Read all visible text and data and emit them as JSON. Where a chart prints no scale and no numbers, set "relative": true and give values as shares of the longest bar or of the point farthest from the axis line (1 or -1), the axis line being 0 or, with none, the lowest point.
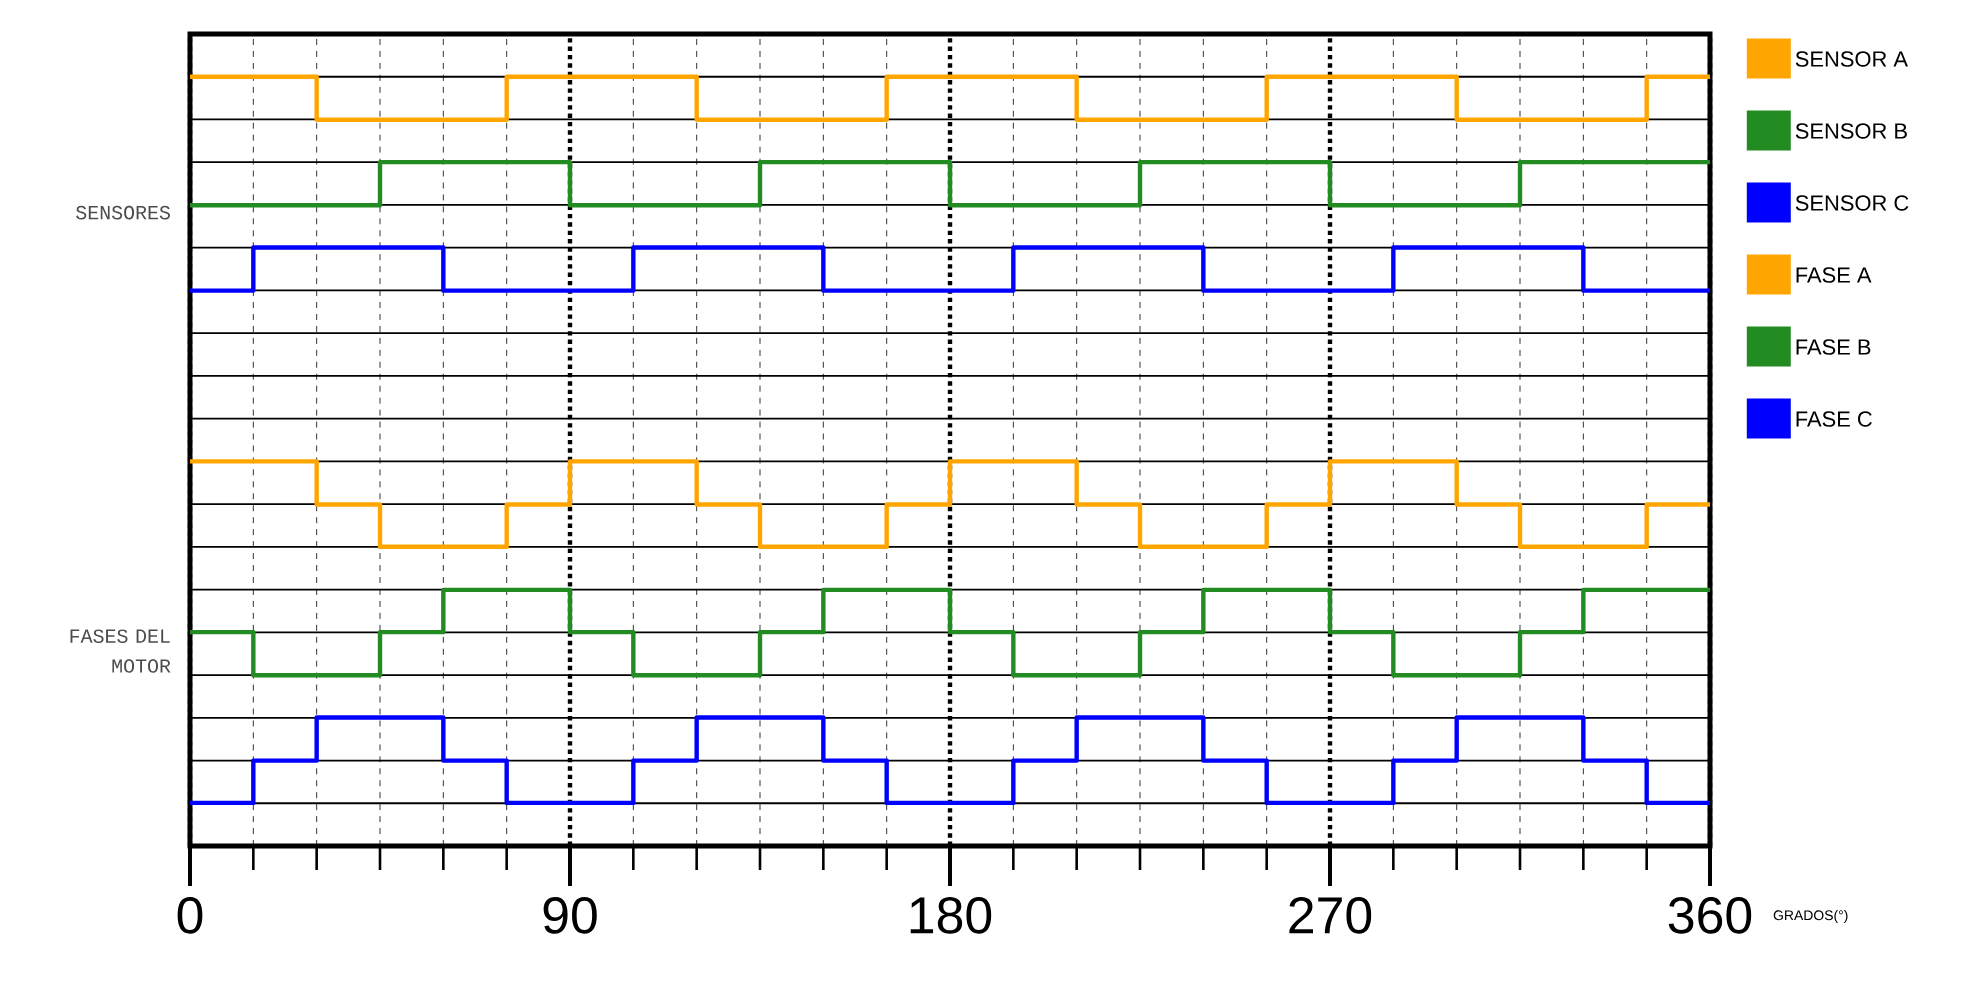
{
  "chart_data": {
    "type": "step",
    "relative": true,
    "xlabel": "GRADOS(°)",
    "xlim": [
      0,
      360
    ],
    "xticks": [
      0,
      90,
      180,
      270,
      360
    ],
    "grid": true,
    "legend": "right",
    "annotations": [
      "SENSORES",
      "FASES DEL MOTOR"
    ],
    "series": [
      {
        "name": "SENSOR A",
        "color": "#ffa500",
        "x": [
          0,
          30,
          75,
          120,
          165,
          210,
          255,
          300,
          345,
          360
        ],
        "values": [
          1,
          0.944,
          1,
          0.944,
          1,
          0.944,
          1,
          0.944,
          1,
          1
        ]
      },
      {
        "name": "SENSOR B",
        "color": "#228b22",
        "x": [
          0,
          45,
          90,
          135,
          180,
          225,
          270,
          315,
          360
        ],
        "values": [
          0.833,
          0.889,
          0.833,
          0.889,
          0.833,
          0.889,
          0.833,
          0.889,
          0.889
        ]
      },
      {
        "name": "SENSOR C",
        "color": "#0000ff",
        "x": [
          0,
          15,
          60,
          105,
          150,
          195,
          240,
          285,
          330,
          360
        ],
        "values": [
          0.722,
          0.778,
          0.722,
          0.778,
          0.722,
          0.778,
          0.722,
          0.778,
          0.722,
          0.722
        ]
      },
      {
        "name": "FASE A",
        "color": "#ffa500",
        "x": [
          0,
          30,
          45,
          75,
          90,
          120,
          135,
          165,
          180,
          210,
          225,
          255,
          270,
          300,
          315,
          345,
          360
        ],
        "values": [
          0.5,
          0.444,
          0.389,
          0.444,
          0.5,
          0.444,
          0.389,
          0.444,
          0.5,
          0.444,
          0.389,
          0.444,
          0.5,
          0.444,
          0.389,
          0.444,
          0.444
        ]
      },
      {
        "name": "FASE B",
        "color": "#228b22",
        "x": [
          0,
          15,
          45,
          60,
          90,
          105,
          135,
          150,
          180,
          195,
          225,
          240,
          270,
          285,
          315,
          330,
          360
        ],
        "values": [
          0.278,
          0.222,
          0.278,
          0.333,
          0.278,
          0.222,
          0.278,
          0.333,
          0.278,
          0.222,
          0.278,
          0.333,
          0.278,
          0.222,
          0.278,
          0.333,
          0.333
        ]
      },
      {
        "name": "FASE C",
        "color": "#0000ff",
        "x": [
          0,
          15,
          30,
          60,
          75,
          105,
          120,
          150,
          165,
          195,
          210,
          240,
          255,
          285,
          300,
          330,
          345,
          360
        ],
        "values": [
          0.056,
          0.111,
          0.167,
          0.111,
          0.056,
          0.111,
          0.167,
          0.111,
          0.056,
          0.111,
          0.167,
          0.111,
          0.056,
          0.111,
          0.167,
          0.111,
          0.056,
          0.056
        ]
      }
    ]
  }
}
